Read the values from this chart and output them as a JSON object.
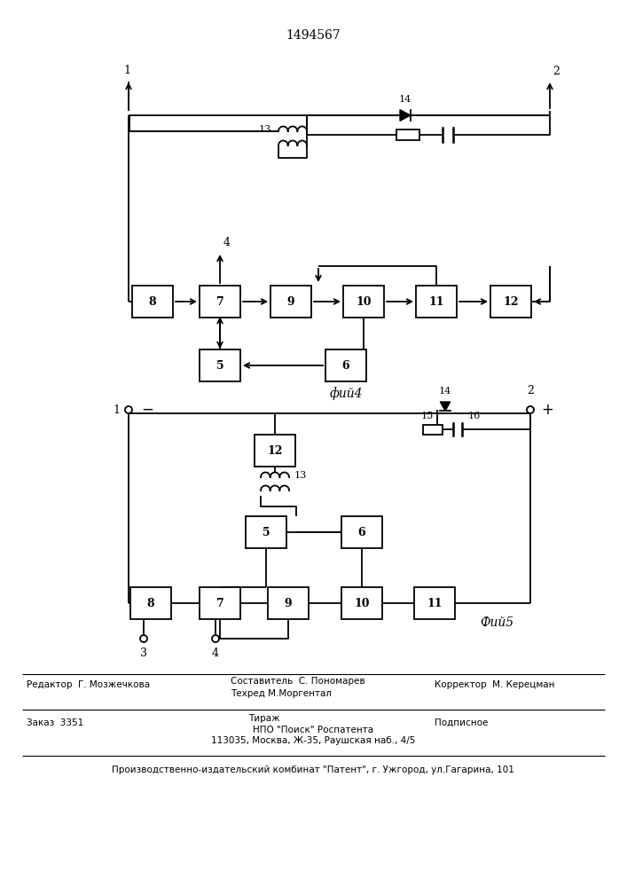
{
  "title": "1494567",
  "bg_color": "#ffffff",
  "line_color": "#000000",
  "fig4_label": "фий4",
  "fig5_label": "Фий5",
  "footer": {
    "editor": "Редактор  Г. Мозжечкова",
    "author": "Составитель  С. Пономарев",
    "tech": "Техред М.Моргентал",
    "corrector": "Корректор  М. Керецман",
    "order": "Заказ  3351",
    "circulation": "Тираж",
    "subscr": "Подписное",
    "npo": "НПО \"Поиск\" Роспатента",
    "address": "113035, Москва, Ж-35, Раушская наб., 4/5",
    "publisher": "Производственно-издательский комбинат \"Патент\", г. Ужгород, ул.Гагарина, 101"
  }
}
